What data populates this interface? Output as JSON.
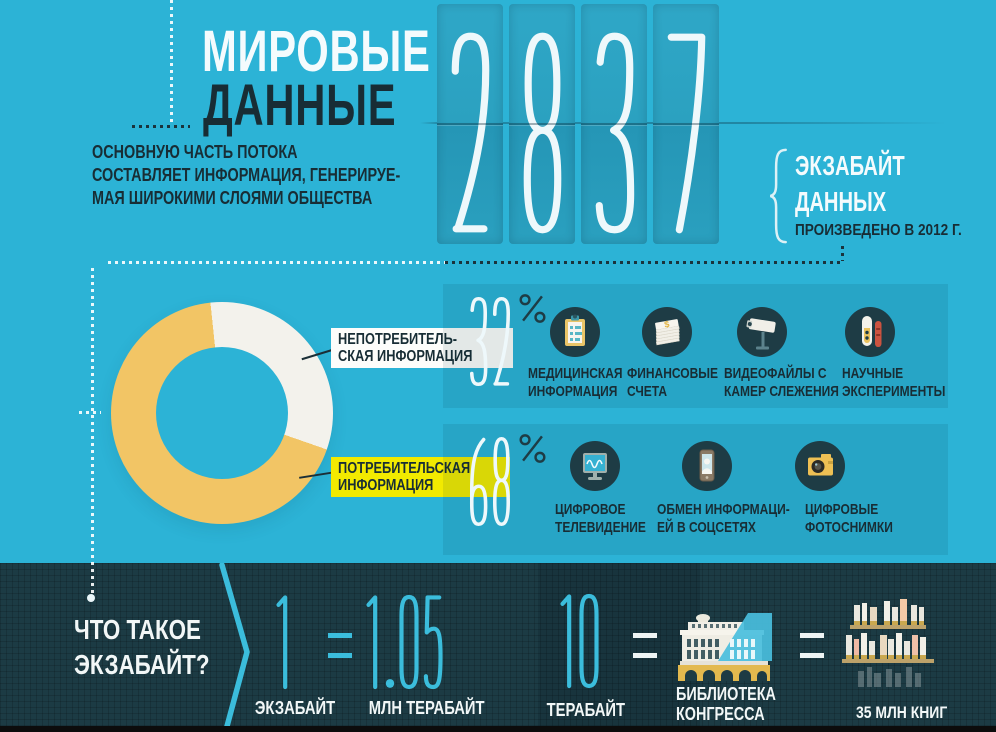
{
  "colors": {
    "background_cyan": "#2cb3d6",
    "dark_navy": "#182d35",
    "accent_cyan": "#3bbddc",
    "donut_yellow": "#f2c565",
    "donut_white": "#f3f2ec",
    "highlight_yellow": "#f2ea00",
    "icon_circle": "#1e3c45",
    "footer_bg": "#1c3b44",
    "digit_white": "#eef8fb"
  },
  "header": {
    "title_line1": "МИРОВЫЕ",
    "title_line2": "ДАННЫЕ",
    "subtitle_lines": [
      "ОСНОВНУЮ ЧАСТЬ ПОТОКА",
      "СОСТАВЛЯЕТ ИНФОРМАЦИЯ, ГЕНЕРИРУЕ-",
      "МАЯ ШИРОКИМИ СЛОЯМИ ОБЩЕСТВА"
    ]
  },
  "counter": {
    "value": "2837",
    "unit_line1": "ЭКЗАБАЙТ",
    "unit_line2": "ДАННЫХ",
    "caption": "ПРОИЗВЕДЕНО В 2012 Г."
  },
  "chart_data": {
    "type": "pie",
    "title": "Структура мировых данных",
    "slices": [
      {
        "label": "НЕПОТРЕБИТЕЛЬСКАЯ ИНФОРМАЦИЯ",
        "value": 32,
        "color": "#f3f2ec"
      },
      {
        "label": "ПОТРЕБИТЕЛЬСКАЯ ИНФОРМАЦИЯ",
        "value": 68,
        "color": "#f2c565"
      }
    ],
    "start_angle_deg": -6,
    "legend_position": "right-callouts"
  },
  "donut_labels": {
    "top_line1": "НЕПОТРЕБИТЕЛЬ-",
    "top_line2": "СКАЯ ИНФОРМАЦИЯ",
    "bottom_line1": "ПОТРЕБИТЕЛЬСКАЯ",
    "bottom_line2": "ИНФОРМАЦИЯ"
  },
  "groups": [
    {
      "percent": "32",
      "percent_sign": "%",
      "items": [
        {
          "icon": "clipboard-icon",
          "line1": "МЕДИЦИНСКАЯ",
          "line2": "ИНФОРМАЦИЯ"
        },
        {
          "icon": "money-stack-icon",
          "line1": "ФИНАНСОВЫЕ",
          "line2": "СЧЕТА"
        },
        {
          "icon": "cctv-icon",
          "line1": "ВИДЕОФАЙЛЫ С",
          "line2": "КАМЕР СЛЕЖЕНИЯ"
        },
        {
          "icon": "test-tubes-icon",
          "line1": "НАУЧНЫЕ",
          "line2": "ЭКСПЕРИМЕНТЫ"
        }
      ]
    },
    {
      "percent": "68",
      "percent_sign": "%",
      "items": [
        {
          "icon": "tv-icon",
          "line1": "ЦИФРОВОЕ",
          "line2": "ТЕЛЕВИДЕНИЕ"
        },
        {
          "icon": "smartphone-icon",
          "line1": "ОБМЕН ИНФОРМАЦИ-",
          "line2": "ЕЙ В СОЦСЕТЯХ"
        },
        {
          "icon": "camera-icon",
          "line1": "ЦИФРОВЫЕ",
          "line2": "ФОТОСНИМКИ"
        }
      ]
    }
  ],
  "footer": {
    "question_line1": "ЧТО ТАКОЕ",
    "question_line2": "ЭКЗАБАЙТ?",
    "equals": "=",
    "exabyte_value": "1",
    "exabyte_label": "ЭКЗАБАЙТ",
    "terabytes_value": "1.05",
    "terabytes_label": "МЛН ТЕРАБАЙТ",
    "tb_value": "10",
    "tb_label": "ТЕРАБАЙТ",
    "library_line1": "БИБЛИОТЕКА",
    "library_line2": "КОНГРЕССА",
    "books_label": "35 МЛН КНИГ"
  }
}
